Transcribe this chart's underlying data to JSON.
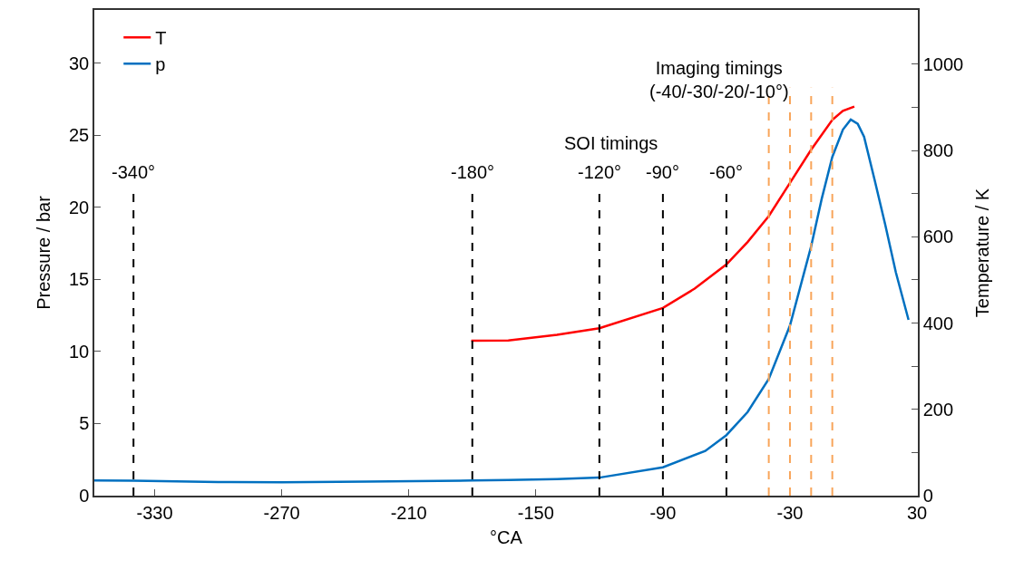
{
  "chart_data": {
    "type": "line",
    "xlabel": "°CA",
    "ylabel": "Pressure / bar",
    "y2label": "Temperature / K",
    "xlim": [
      -358.5,
      30.4
    ],
    "xticks": [
      -330,
      -270,
      -210,
      -150,
      -90,
      -30,
      30
    ],
    "ylim": [
      0,
      33.7
    ],
    "yticks": [
      0,
      5,
      10,
      15,
      20,
      25,
      30
    ],
    "y2lim": [
      0,
      1126
    ],
    "y2ticks": [
      0,
      {
        "value": 100,
        "label": null
      },
      200,
      {
        "value": 300,
        "label": null
      },
      400,
      {
        "value": 500,
        "label": null
      },
      600,
      {
        "value": 700,
        "label": null
      },
      800,
      {
        "value": 900,
        "label": null
      },
      1000
    ],
    "series": [
      {
        "name": "T",
        "color": "#ff0000",
        "axis": "y2",
        "x": [
          -180.5,
          -163,
          -140,
          -120,
          -90,
          -75,
          -60,
          -50,
          -40,
          -30,
          -20,
          -10,
          -5,
          0.4
        ],
        "values": [
          359,
          360,
          373,
          388,
          435,
          480,
          536,
          588,
          648,
          725,
          802,
          871,
          892,
          902
        ]
      },
      {
        "name": "p",
        "color": "#0070c0",
        "x": [
          -358.5,
          -340,
          -300,
          -270,
          -230,
          -180,
          -163,
          -140,
          -120,
          -90,
          -70,
          -60,
          -50,
          -40,
          -30,
          -20,
          -15,
          -10,
          -5,
          -1.3,
          2,
          5,
          10,
          15,
          20,
          26
        ],
        "values": [
          1.05,
          1.03,
          0.95,
          0.92,
          0.97,
          1.05,
          1.08,
          1.15,
          1.25,
          1.97,
          3.1,
          4.2,
          5.8,
          8.1,
          11.8,
          17.3,
          20.6,
          23.5,
          25.4,
          26.1,
          25.8,
          24.9,
          21.9,
          18.8,
          15.5,
          12.2
        ]
      }
    ],
    "ref_lines": [
      {
        "axis": "x",
        "value": -340,
        "label": "-340°",
        "color": "#000000",
        "line_style": "dashed"
      },
      {
        "axis": "x",
        "value": -180,
        "label": "-180°",
        "color": "#000000",
        "line_style": "dashed"
      },
      {
        "axis": "x",
        "value": -120,
        "label": "-120°",
        "color": "#000000",
        "line_style": "dashed"
      },
      {
        "axis": "x",
        "value": -90,
        "label": "-90°",
        "color": "#000000",
        "line_style": "dashed"
      },
      {
        "axis": "x",
        "value": -60,
        "label": "-60°",
        "color": "#000000",
        "line_style": "dashed"
      },
      {
        "axis": "x",
        "value": -40,
        "color": "#f8a55a",
        "line_style": "dashed"
      },
      {
        "axis": "x",
        "value": -30,
        "color": "#f8a55a",
        "line_style": "dashed"
      },
      {
        "axis": "x",
        "value": -20,
        "color": "#f8a55a",
        "line_style": "dashed"
      },
      {
        "axis": "x",
        "value": -10,
        "color": "#f8a55a",
        "line_style": "dashed"
      }
    ],
    "annotations": [
      "SOI timings",
      "Imaging timings\n(-40/-30/-20/-10°)"
    ],
    "legend": "top left",
    "grid": false,
    "marker": "none",
    "line_style": "solid"
  }
}
